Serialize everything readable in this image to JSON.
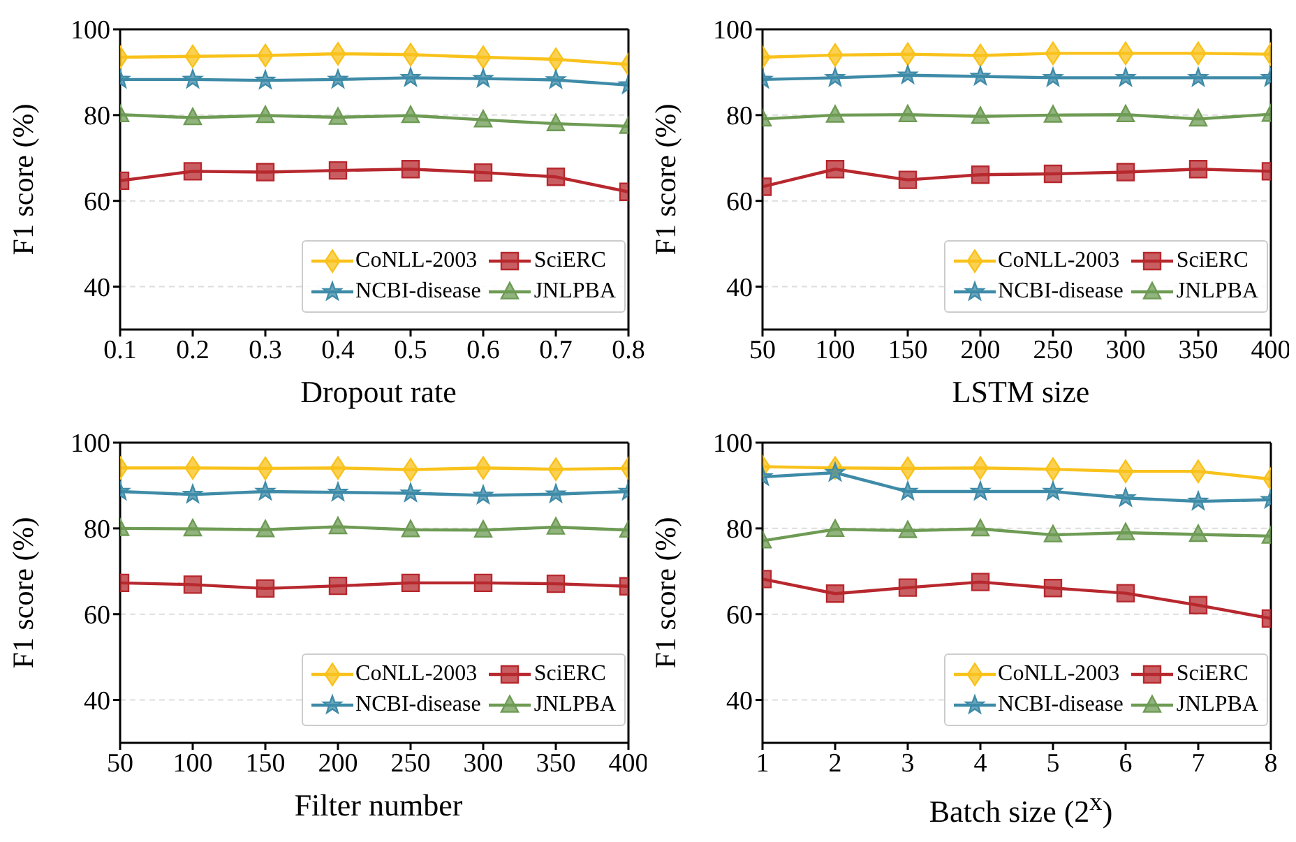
{
  "chart_data": [
    {
      "type": "line",
      "xlabel": "Dropout rate",
      "ylabel": "F1 score (%)",
      "x": [
        0.1,
        0.2,
        0.3,
        0.4,
        0.5,
        0.6,
        0.7,
        0.8
      ],
      "xlim": [
        0.1,
        0.8
      ],
      "xticks": [
        0.1,
        0.2,
        0.3,
        0.4,
        0.5,
        0.6,
        0.7,
        0.8
      ],
      "ylim": [
        30,
        100
      ],
      "yticks": [
        40,
        60,
        80,
        100
      ],
      "grid": "y",
      "legend": "bottom right",
      "series": [
        {
          "name": "CoNLL-2003",
          "color": "#f9c21b",
          "marker": "diamond",
          "values": [
            93.5,
            93.7,
            93.9,
            94.3,
            94.1,
            93.5,
            93.0,
            91.8
          ]
        },
        {
          "name": "NCBI-disease",
          "color": "#3e8ba8",
          "marker": "star",
          "values": [
            88.3,
            88.3,
            88.1,
            88.3,
            88.7,
            88.5,
            88.2,
            87.0
          ]
        },
        {
          "name": "SciERC",
          "color": "#b7282e",
          "marker": "square",
          "values": [
            64.7,
            66.9,
            66.7,
            67.1,
            67.4,
            66.6,
            65.6,
            62.1
          ]
        },
        {
          "name": "JNLPBA",
          "color": "#6e9b54",
          "marker": "triangle",
          "values": [
            80.1,
            79.4,
            79.9,
            79.5,
            79.9,
            78.9,
            78.0,
            77.4
          ]
        }
      ]
    },
    {
      "type": "line",
      "xlabel": "LSTM size",
      "ylabel": "F1 score (%)",
      "x": [
        50,
        100,
        150,
        200,
        250,
        300,
        350,
        400
      ],
      "xlim": [
        50,
        400
      ],
      "xticks": [
        50,
        100,
        150,
        200,
        250,
        300,
        350,
        400
      ],
      "ylim": [
        30,
        100
      ],
      "yticks": [
        40,
        60,
        80,
        100
      ],
      "grid": "y",
      "legend": "bottom right",
      "series": [
        {
          "name": "CoNLL-2003",
          "color": "#f9c21b",
          "marker": "diamond",
          "values": [
            93.5,
            94.0,
            94.2,
            93.9,
            94.4,
            94.4,
            94.4,
            94.2
          ]
        },
        {
          "name": "NCBI-disease",
          "color": "#3e8ba8",
          "marker": "star",
          "values": [
            88.3,
            88.7,
            89.3,
            89.0,
            88.7,
            88.7,
            88.7,
            88.7
          ]
        },
        {
          "name": "SciERC",
          "color": "#b7282e",
          "marker": "square",
          "values": [
            63.3,
            67.4,
            64.9,
            66.1,
            66.3,
            66.7,
            67.4,
            66.9
          ]
        },
        {
          "name": "JNLPBA",
          "color": "#6e9b54",
          "marker": "triangle",
          "values": [
            79.1,
            80.0,
            80.1,
            79.7,
            80.0,
            80.1,
            79.1,
            80.2
          ]
        }
      ]
    },
    {
      "type": "line",
      "xlabel": "Filter number",
      "ylabel": "F1 score (%)",
      "x": [
        50,
        100,
        150,
        200,
        250,
        300,
        350,
        400
      ],
      "xlim": [
        50,
        400
      ],
      "xticks": [
        50,
        100,
        150,
        200,
        250,
        300,
        350,
        400
      ],
      "ylim": [
        30,
        100
      ],
      "yticks": [
        40,
        60,
        80,
        100
      ],
      "grid": "y",
      "legend": "bottom right",
      "series": [
        {
          "name": "CoNLL-2003",
          "color": "#f9c21b",
          "marker": "diamond",
          "values": [
            94.1,
            94.1,
            94.0,
            94.1,
            93.7,
            94.1,
            93.8,
            94.0
          ]
        },
        {
          "name": "NCBI-disease",
          "color": "#3e8ba8",
          "marker": "star",
          "values": [
            88.6,
            87.9,
            88.6,
            88.4,
            88.2,
            87.7,
            88.0,
            88.6
          ]
        },
        {
          "name": "SciERC",
          "color": "#b7282e",
          "marker": "square",
          "values": [
            67.3,
            66.9,
            66.0,
            66.6,
            67.3,
            67.3,
            67.1,
            66.5
          ]
        },
        {
          "name": "JNLPBA",
          "color": "#6e9b54",
          "marker": "triangle",
          "values": [
            80.0,
            79.9,
            79.7,
            80.4,
            79.7,
            79.6,
            80.3,
            79.6
          ]
        }
      ]
    },
    {
      "type": "line",
      "xlabel": "Batch size (2$^{x}$)",
      "ylabel": "F1 score (%)",
      "x": [
        1,
        2,
        3,
        4,
        5,
        6,
        7,
        8
      ],
      "xlim": [
        1,
        8
      ],
      "xticks": [
        1,
        2,
        3,
        4,
        5,
        6,
        7,
        8
      ],
      "ylim": [
        30,
        100
      ],
      "yticks": [
        40,
        60,
        80,
        100
      ],
      "grid": "y",
      "legend": "bottom right",
      "series": [
        {
          "name": "CoNLL-2003",
          "color": "#f9c21b",
          "marker": "diamond",
          "values": [
            94.4,
            94.1,
            94.0,
            94.1,
            93.8,
            93.3,
            93.3,
            91.5
          ]
        },
        {
          "name": "NCBI-disease",
          "color": "#3e8ba8",
          "marker": "star",
          "values": [
            92.0,
            93.0,
            88.6,
            88.6,
            88.6,
            87.1,
            86.3,
            86.7
          ]
        },
        {
          "name": "SciERC",
          "color": "#b7282e",
          "marker": "square",
          "values": [
            68.2,
            64.8,
            66.2,
            67.5,
            66.1,
            64.9,
            62.1,
            59.0
          ]
        },
        {
          "name": "JNLPBA",
          "color": "#6e9b54",
          "marker": "triangle",
          "values": [
            77.1,
            79.8,
            79.5,
            79.9,
            78.5,
            79.0,
            78.6,
            78.2
          ]
        }
      ]
    }
  ]
}
